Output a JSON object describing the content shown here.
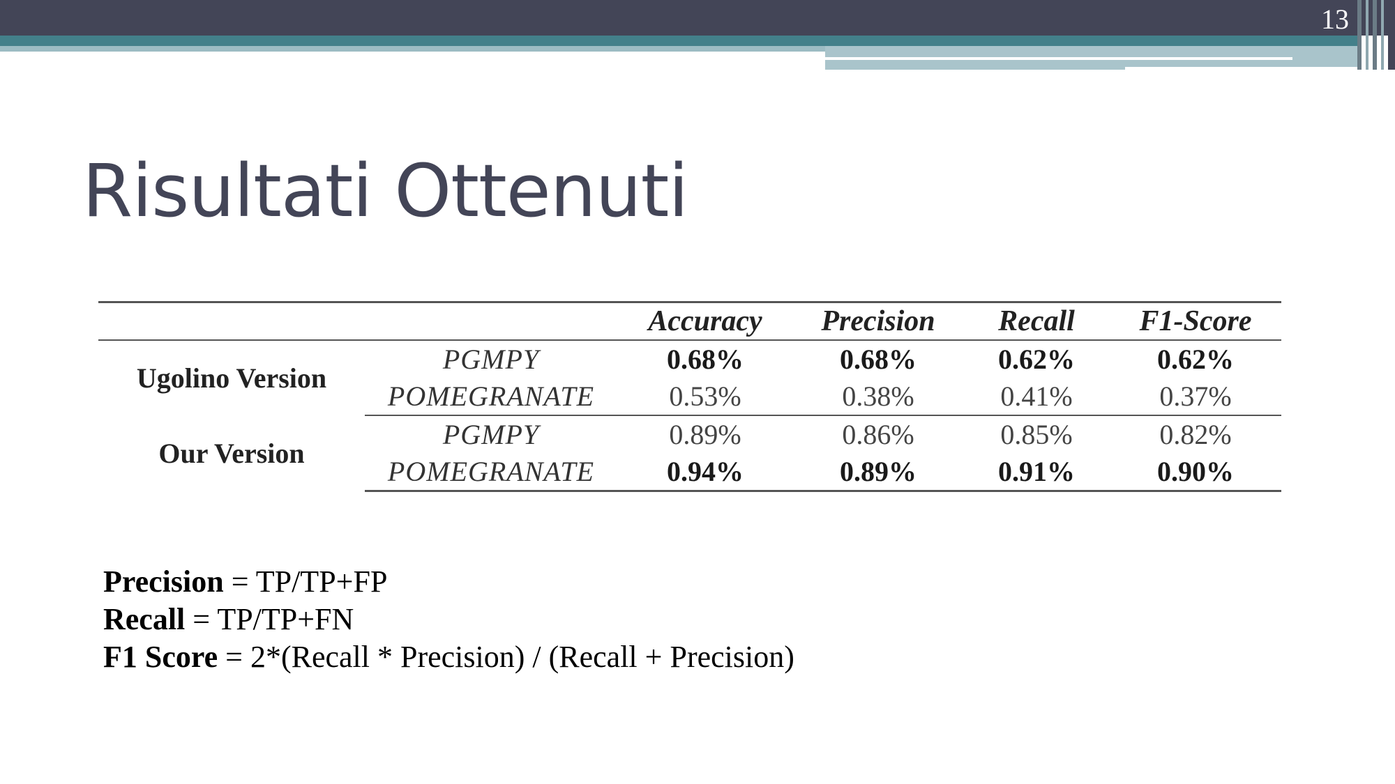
{
  "slide": {
    "number": "13",
    "title": "Risultati Ottenuti"
  },
  "colors": {
    "header_dark": "#434557",
    "header_teal": "#43808a",
    "header_light": "#a9c4cb",
    "title_text": "#434557"
  },
  "table": {
    "columns": [
      "Accuracy",
      "Precision",
      "Recall",
      "F1-Score"
    ],
    "groups": [
      {
        "label": "Ugolino Version",
        "rows": [
          {
            "model": "PGMPY",
            "bold": true,
            "values": [
              "0.68%",
              "0.68%",
              "0.62%",
              "0.62%"
            ]
          },
          {
            "model": "POMEGRANATE",
            "bold": false,
            "values": [
              "0.53%",
              "0.38%",
              "0.41%",
              "0.37%"
            ]
          }
        ]
      },
      {
        "label": "Our Version",
        "rows": [
          {
            "model": "PGMPY",
            "bold": false,
            "values": [
              "0.89%",
              "0.86%",
              "0.85%",
              "0.82%"
            ]
          },
          {
            "model": "POMEGRANATE",
            "bold": true,
            "values": [
              "0.94%",
              "0.89%",
              "0.91%",
              "0.90%"
            ]
          }
        ]
      }
    ]
  },
  "formulas": [
    {
      "term": "Precision",
      "expression": " = TP/TP+FP"
    },
    {
      "term": "Recall",
      "expression": " = TP/TP+FN"
    },
    {
      "term": "F1 Score",
      "expression": " = 2*(Recall * Precision) / (Recall + Precision)"
    }
  ]
}
